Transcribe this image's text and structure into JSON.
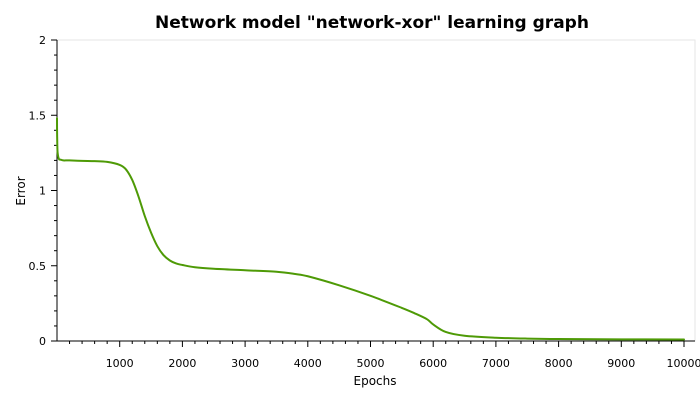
{
  "chart_data": {
    "type": "line",
    "title": "Network model \"network-xor\" learning graph",
    "xlabel": "Epochs",
    "ylabel": "Error",
    "xlim": [
      0,
      10000
    ],
    "ylim": [
      0,
      2
    ],
    "x_ticks": [
      1000,
      2000,
      3000,
      4000,
      5000,
      6000,
      7000,
      8000,
      9000,
      10000
    ],
    "x_tick_labels": [
      "1000",
      "2000",
      "3000",
      "4000",
      "5000",
      "6000",
      "7000",
      "8000",
      "9000",
      "10000"
    ],
    "y_ticks": [
      0,
      0.5,
      1,
      1.5,
      2
    ],
    "y_tick_labels": [
      "0",
      "0.5",
      "1",
      "1.5",
      "2"
    ],
    "grid": false,
    "legend": "none",
    "series": [
      {
        "color": "#4e9a06",
        "x": [
          0,
          1,
          5,
          10,
          30,
          60,
          100,
          200,
          400,
          600,
          800,
          1000,
          1100,
          1200,
          1300,
          1400,
          1500,
          1600,
          1700,
          1800,
          1900,
          2000,
          2200,
          2500,
          3000,
          3500,
          3800,
          4000,
          4500,
          5000,
          5500,
          5700,
          5900,
          6000,
          6200,
          6500,
          7000,
          7500,
          8000,
          9000,
          10000
        ],
        "y": [
          1.48,
          1.4,
          1.3,
          1.25,
          1.21,
          1.205,
          1.2,
          1.2,
          1.197,
          1.195,
          1.19,
          1.17,
          1.14,
          1.07,
          0.96,
          0.83,
          0.72,
          0.63,
          0.57,
          0.535,
          0.515,
          0.505,
          0.49,
          0.48,
          0.47,
          0.46,
          0.445,
          0.43,
          0.37,
          0.3,
          0.22,
          0.185,
          0.145,
          0.11,
          0.06,
          0.035,
          0.022,
          0.016,
          0.013,
          0.011,
          0.01
        ]
      }
    ]
  }
}
